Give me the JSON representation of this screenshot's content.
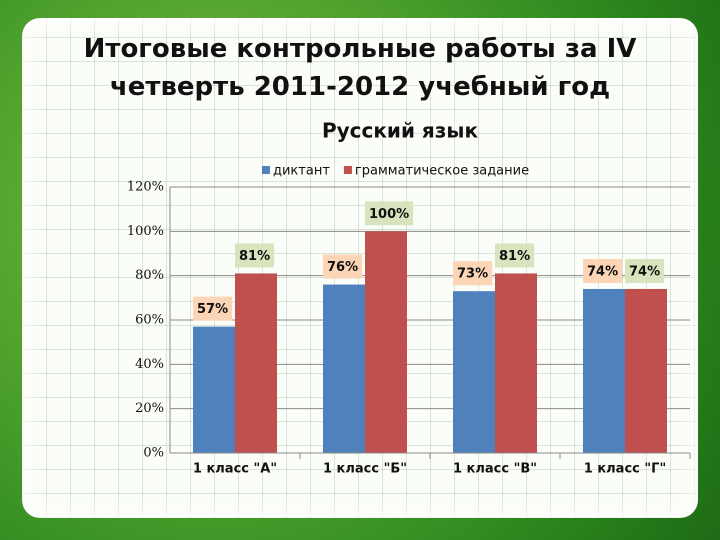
{
  "chart_data": {
    "type": "bar",
    "title": "Итоговые контрольные работы за IV четверть 2011-2012 учебный год",
    "subtitle": "Русский язык",
    "categories": [
      "1 класс \"А\"",
      "1 класс \"Б\"",
      "1 класс \"В\"",
      "1 класс \"Г\""
    ],
    "series": [
      {
        "name": "диктант",
        "color": "#4f81bd",
        "values": [
          57,
          76,
          73,
          74
        ],
        "value_labels": [
          "57%",
          "76%",
          "73%",
          "74%"
        ]
      },
      {
        "name": "грамматическое задание",
        "color": "#c0504d",
        "values": [
          81,
          100,
          81,
          74
        ],
        "value_labels": [
          "81%",
          "100%",
          "81%",
          "74%"
        ]
      }
    ],
    "ylim": [
      0,
      120
    ],
    "yticks": [
      {
        "value": 0,
        "label": "0%"
      },
      {
        "value": 20,
        "label": "20%"
      },
      {
        "value": 40,
        "label": "40%"
      },
      {
        "value": 60,
        "label": "60%"
      },
      {
        "value": 80,
        "label": "80%"
      },
      {
        "value": 100,
        "label": "100%"
      },
      {
        "value": 120,
        "label": "120%"
      }
    ],
    "grid": true,
    "legend": "top"
  }
}
